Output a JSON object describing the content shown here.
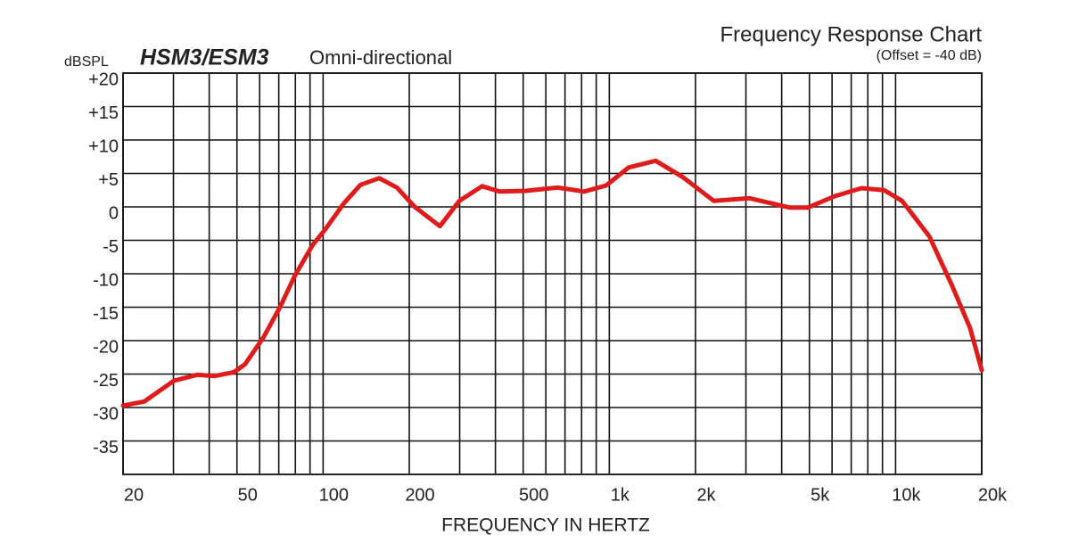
{
  "chart_data": {
    "type": "line",
    "title": "Frequency Response Chart",
    "note": "(Offset = -40 dB)",
    "model": "HSM3/ESM3",
    "pattern": "Omni-directional",
    "y_label": "dBSPL",
    "x_label": "FREQUENCY IN HERTZ",
    "xscale": "log",
    "grid": true,
    "xlim": [
      20,
      20000
    ],
    "ylim": [
      -40,
      20
    ],
    "xticks": [
      20,
      50,
      100,
      200,
      500,
      {
        "value": 1000,
        "label": "1k"
      },
      {
        "value": 2000,
        "label": "2k"
      },
      {
        "value": 5000,
        "label": "5k"
      },
      {
        "value": 10000,
        "label": "10k"
      },
      {
        "value": 20000,
        "label": "20k"
      }
    ],
    "minor_xticks": [
      30,
      40,
      60,
      70,
      80,
      90,
      300,
      400,
      600,
      700,
      800,
      900,
      3000,
      4000,
      6000,
      7000,
      8000,
      9000
    ],
    "yticks": [
      {
        "value": 20,
        "label": "+20"
      },
      {
        "value": 15,
        "label": "+15"
      },
      {
        "value": 10,
        "label": "+10"
      },
      {
        "value": 5,
        "label": "+5"
      },
      0,
      -5,
      -10,
      -15,
      -20,
      -25,
      -30,
      -35
    ],
    "series": [
      {
        "name": "HSM3/ESM3",
        "color": "#e01b1b",
        "x": [
          20,
          23.7,
          30.1,
          36.3,
          41.6,
          48.9,
          53.4,
          61.9,
          71.1,
          79.4,
          91.9,
          102,
          118,
          135,
          157,
          181,
          209,
          256,
          299,
          359,
          414,
          512,
          659,
          816,
          975,
          1168,
          1451,
          1800,
          2318,
          3089,
          4270,
          4934,
          6128,
          7605,
          9123,
          10540,
          13120,
          15730,
          18200,
          20000
        ],
        "values": [
          -29.7,
          -29.1,
          -26,
          -25.1,
          -25.3,
          -24.7,
          -23.5,
          -19.5,
          -14.8,
          -10.4,
          -5.7,
          -3.3,
          0.5,
          3.3,
          4.3,
          2.9,
          0,
          -2.9,
          0.9,
          3.1,
          2.3,
          2.4,
          2.9,
          2.3,
          3.2,
          5.9,
          6.9,
          4.5,
          0.9,
          1.3,
          -0.1,
          -0.1,
          1.6,
          2.8,
          2.5,
          0.9,
          -4.4,
          -11.7,
          -18.1,
          -24.4
        ]
      }
    ]
  }
}
